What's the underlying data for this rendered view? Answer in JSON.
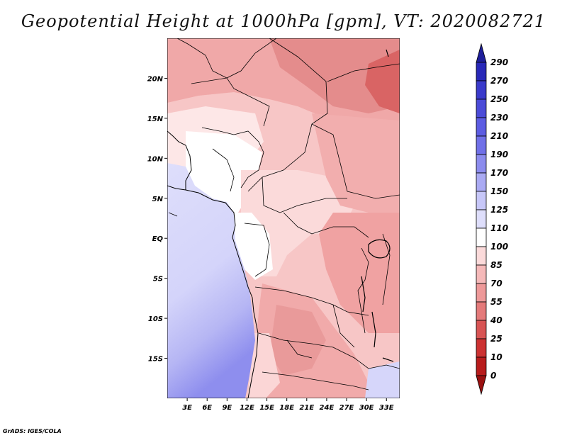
{
  "title": "Geopotential Height at 1000hPa [gpm], VT: 2020082721",
  "credit": "GrADS: IGES/COLA",
  "map": {
    "lon_range": [
      0,
      35
    ],
    "lat_range": [
      -20,
      25
    ],
    "lon_ticks": [
      "3E",
      "6E",
      "9E",
      "12E",
      "15E",
      "18E",
      "21E",
      "24E",
      "27E",
      "30E",
      "33E"
    ],
    "lon_tick_values": [
      3,
      6,
      9,
      12,
      15,
      18,
      21,
      24,
      27,
      30,
      33
    ],
    "lat_ticks": [
      "20N",
      "15N",
      "10N",
      "5N",
      "EQ",
      "5S",
      "10S",
      "15S"
    ],
    "lat_tick_values": [
      20,
      15,
      10,
      5,
      0,
      -5,
      -10,
      -15
    ]
  },
  "colorbar": {
    "labels": [
      "290",
      "270",
      "250",
      "230",
      "210",
      "190",
      "170",
      "150",
      "125",
      "110",
      "100",
      "85",
      "70",
      "55",
      "40",
      "25",
      "10",
      "0"
    ],
    "colors": [
      "#1e1e9a",
      "#2828b8",
      "#3a3acb",
      "#4b4bd8",
      "#5c5ce2",
      "#7070e8",
      "#8c8cee",
      "#aaaaf3",
      "#c7c7f8",
      "#dedefb",
      "#ffffff",
      "#fbdada",
      "#f5b9b9",
      "#ee9999",
      "#e47a7a",
      "#d85454",
      "#cc3232",
      "#b81c1c",
      "#9a1010"
    ]
  }
}
